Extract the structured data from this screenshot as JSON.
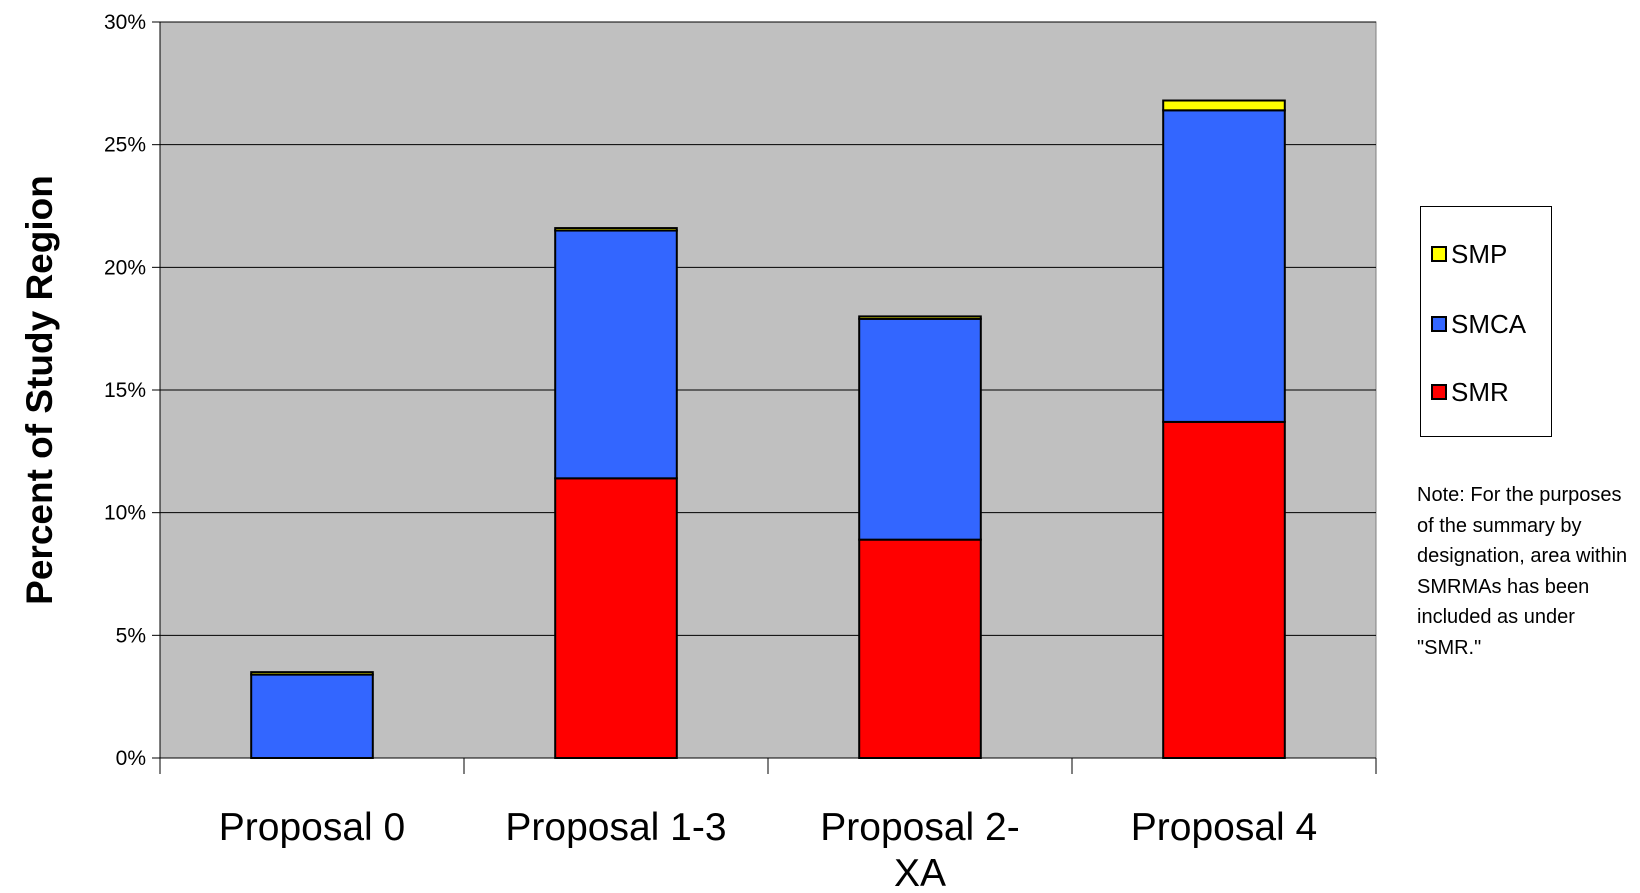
{
  "chart_data": {
    "type": "bar",
    "stacked": true,
    "categories": [
      "Proposal 0",
      "Proposal 1-3",
      "Proposal 2-\nXA",
      "Proposal 4"
    ],
    "series": [
      {
        "name": "SMR",
        "color": "#ff0000",
        "values": [
          0,
          11.4,
          8.9,
          13.7
        ]
      },
      {
        "name": "SMCA",
        "color": "#3366ff",
        "values": [
          3.4,
          10.1,
          9.0,
          12.7
        ]
      },
      {
        "name": "SMP",
        "color": "#ffff00",
        "values": [
          0.1,
          0.1,
          0.1,
          0.4
        ]
      }
    ],
    "ylabel": "Percent of Study Region",
    "xlabel": "",
    "ylim": [
      0,
      30
    ],
    "yticks": [
      0,
      5,
      10,
      15,
      20,
      25,
      30
    ],
    "ytick_labels": [
      "0%",
      "5%",
      "10%",
      "15%",
      "20%",
      "25%",
      "30%"
    ],
    "grid": true,
    "plot_background": "#c0c0c0",
    "legend_position": "right",
    "note": "Note: For the purposes of the summary by designation, area within SMRMAs has been included as under \"SMR.\""
  }
}
